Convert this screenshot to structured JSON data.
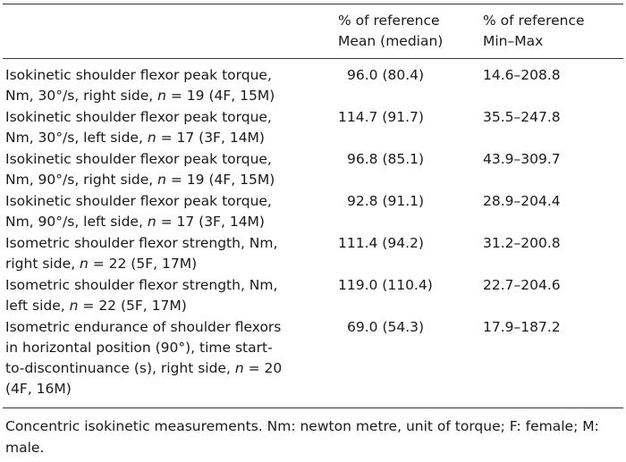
{
  "header": {
    "col2_line1": "% of reference",
    "col2_line2": "Mean (median)",
    "col3_line1": "% of reference",
    "col3_line2": "Min–Max"
  },
  "rows": [
    {
      "line1": "Isokinetic shoulder flexor peak torque,",
      "line2_pre": "Nm, 30°/s, right side, ",
      "n_label": "n",
      "line2_post": " = 19 (4F, 15M)",
      "mean": "96.0 (80.4)",
      "range": "14.6–208.8"
    },
    {
      "line1": "Isokinetic shoulder flexor peak torque,",
      "line2_pre": "Nm, 30°/s, left side, ",
      "n_label": "n",
      "line2_post": " = 17 (3F, 14M)",
      "mean": "114.7 (91.7)",
      "range": "35.5–247.8"
    },
    {
      "line1": "Isokinetic shoulder flexor peak torque,",
      "line2_pre": "Nm, 90°/s, right side, ",
      "n_label": "n",
      "line2_post": " = 19 (4F, 15M)",
      "mean": "96.8 (85.1)",
      "range": "43.9–309.7"
    },
    {
      "line1": "Isokinetic shoulder flexor peak torque,",
      "line2_pre": "Nm, 90°/s, left side, ",
      "n_label": "n",
      "line2_post": " = 17 (3F, 14M)",
      "mean": "92.8 (91.1)",
      "range": "28.9–204.4"
    },
    {
      "line1": "Isometric shoulder flexor strength, Nm,",
      "line2_pre": "right side, ",
      "n_label": "n",
      "line2_post": " = 22 (5F, 17M)",
      "mean": "111.4 (94.2)",
      "range": "31.2–200.8"
    },
    {
      "line1": "Isometric shoulder flexor strength, Nm,",
      "line2_pre": "left side, ",
      "n_label": "n",
      "line2_post": " = 22 (5F, 17M)",
      "mean": "119.0 (110.4)",
      "range": "22.7–204.6"
    }
  ],
  "last_row": {
    "line1": "Isometric endurance of shoulder flexors",
    "line2": "in horizontal position (90°), time start-",
    "line3_pre": "to-discontinuance (s), right side, ",
    "n_label": "n",
    "line3_post": " = 20",
    "line4": "(4F, 16M)",
    "mean": "69.0 (54.3)",
    "range": "17.9–187.2"
  },
  "footer": {
    "note": "Concentric isokinetic measurements. Nm: newton metre, unit of torque; F: female; M: male."
  }
}
